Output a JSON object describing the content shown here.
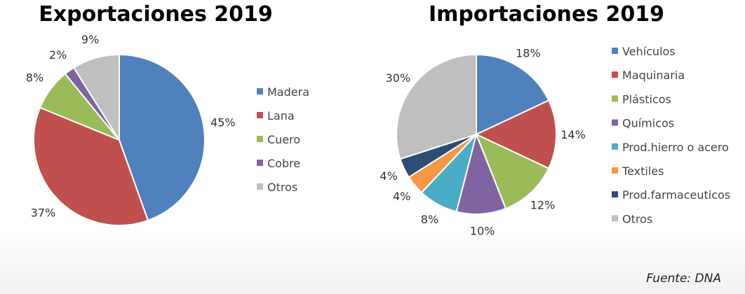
{
  "source": "Fuente: DNA",
  "chart_data": [
    {
      "type": "pie",
      "title": "Exportaciones 2019",
      "legend": "right",
      "slices": [
        {
          "label": "Madera",
          "value": 45,
          "display": "45%",
          "color": "#4F81BD"
        },
        {
          "label": "Lana",
          "value": 37,
          "display": "37%",
          "color": "#C0504D"
        },
        {
          "label": "Cuero",
          "value": 8,
          "display": "8%",
          "color": "#9BBB59"
        },
        {
          "label": "Cobre",
          "value": 2,
          "display": "2%",
          "color": "#8064A2"
        },
        {
          "label": "Otros",
          "value": 9,
          "display": "9%",
          "color": "#BFBFBF"
        }
      ]
    },
    {
      "type": "pie",
      "title": "Importaciones 2019",
      "legend": "right",
      "slices": [
        {
          "label": "Vehículos",
          "value": 18,
          "display": "18%",
          "color": "#4F81BD"
        },
        {
          "label": "Maquinaria",
          "value": 14,
          "display": "14%",
          "color": "#C0504D"
        },
        {
          "label": "Plásticos",
          "value": 12,
          "display": "12%",
          "color": "#9BBB59"
        },
        {
          "label": "Químicos",
          "value": 10,
          "display": "10%",
          "color": "#8064A2"
        },
        {
          "label": "Prod.hierro o acero",
          "value": 8,
          "display": "8%",
          "color": "#4BACC6"
        },
        {
          "label": "Textiles",
          "value": 4,
          "display": "4%",
          "color": "#F79646"
        },
        {
          "label": "Prod.farmaceuticos",
          "value": 4,
          "display": "4%",
          "color": "#2C4D75"
        },
        {
          "label": "Otros",
          "value": 30,
          "display": "30%",
          "color": "#BFBFBF"
        }
      ]
    }
  ]
}
